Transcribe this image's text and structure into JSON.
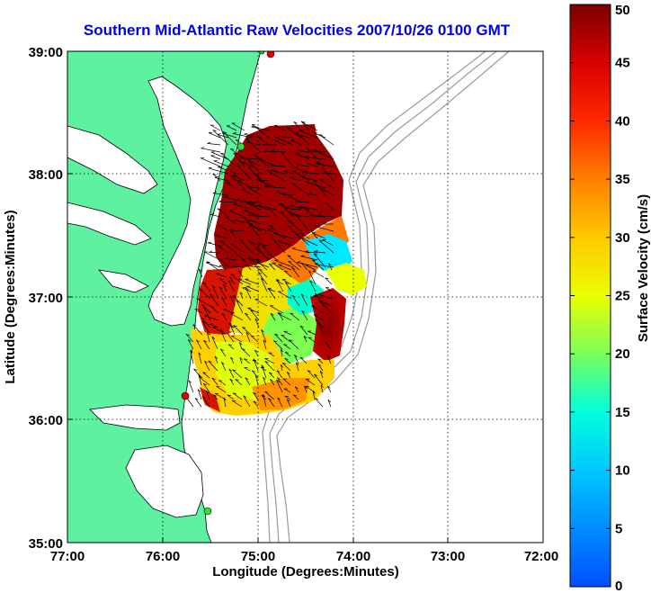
{
  "title": "Southern Mid-Atlantic Raw Velocities 2007/10/26 0100 GMT",
  "axes": {
    "xlabel": "Longitude (Degrees:Minutes)",
    "ylabel": "Latitude (Degrees:Minutes)",
    "xticks": [
      "77:00",
      "76:00",
      "75:00",
      "74:00",
      "73:00",
      "72:00"
    ],
    "yticks": [
      "39:00",
      "38:00",
      "37:00",
      "36:00",
      "35:00"
    ]
  },
  "colorbar": {
    "label": "Surface Velocity (cm/s)",
    "ticks": [
      "0",
      "5",
      "10",
      "15",
      "20",
      "25",
      "30",
      "35",
      "40",
      "45",
      "50"
    ],
    "min": 0,
    "max": 50
  },
  "colors": {
    "land": "#5ef2a0",
    "title": "#0000e6",
    "site_red": "#e60000",
    "site_green": "#33dd33"
  },
  "sites": [
    {
      "name": "north-red",
      "color": "red"
    },
    {
      "name": "upper-green",
      "color": "green"
    },
    {
      "name": "lower-red",
      "color": "red"
    },
    {
      "name": "south-green",
      "color": "green"
    }
  ]
}
